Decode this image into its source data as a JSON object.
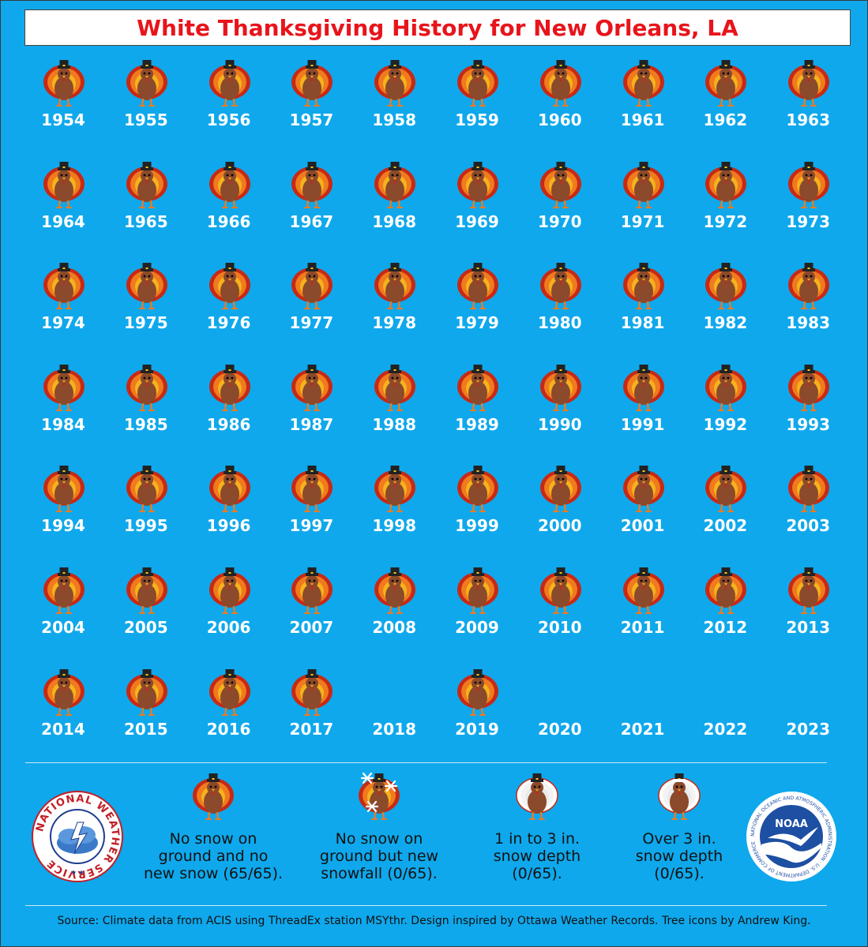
{
  "title": "White Thanksgiving History for New Orleans, LA",
  "years": [
    {
      "year": "1954",
      "category": "none"
    },
    {
      "year": "1955",
      "category": "none"
    },
    {
      "year": "1956",
      "category": "none"
    },
    {
      "year": "1957",
      "category": "none"
    },
    {
      "year": "1958",
      "category": "none"
    },
    {
      "year": "1959",
      "category": "none"
    },
    {
      "year": "1960",
      "category": "none"
    },
    {
      "year": "1961",
      "category": "none"
    },
    {
      "year": "1962",
      "category": "none"
    },
    {
      "year": "1963",
      "category": "none"
    },
    {
      "year": "1964",
      "category": "none"
    },
    {
      "year": "1965",
      "category": "none"
    },
    {
      "year": "1966",
      "category": "none"
    },
    {
      "year": "1967",
      "category": "none"
    },
    {
      "year": "1968",
      "category": "none"
    },
    {
      "year": "1969",
      "category": "none"
    },
    {
      "year": "1970",
      "category": "none"
    },
    {
      "year": "1971",
      "category": "none"
    },
    {
      "year": "1972",
      "category": "none"
    },
    {
      "year": "1973",
      "category": "none"
    },
    {
      "year": "1974",
      "category": "none"
    },
    {
      "year": "1975",
      "category": "none"
    },
    {
      "year": "1976",
      "category": "none"
    },
    {
      "year": "1977",
      "category": "none"
    },
    {
      "year": "1978",
      "category": "none"
    },
    {
      "year": "1979",
      "category": "none"
    },
    {
      "year": "1980",
      "category": "none"
    },
    {
      "year": "1981",
      "category": "none"
    },
    {
      "year": "1982",
      "category": "none"
    },
    {
      "year": "1983",
      "category": "none"
    },
    {
      "year": "1984",
      "category": "none"
    },
    {
      "year": "1985",
      "category": "none"
    },
    {
      "year": "1986",
      "category": "none"
    },
    {
      "year": "1987",
      "category": "none"
    },
    {
      "year": "1988",
      "category": "none"
    },
    {
      "year": "1989",
      "category": "none"
    },
    {
      "year": "1990",
      "category": "none"
    },
    {
      "year": "1991",
      "category": "none"
    },
    {
      "year": "1992",
      "category": "none"
    },
    {
      "year": "1993",
      "category": "none"
    },
    {
      "year": "1994",
      "category": "none"
    },
    {
      "year": "1995",
      "category": "none"
    },
    {
      "year": "1996",
      "category": "none"
    },
    {
      "year": "1997",
      "category": "none"
    },
    {
      "year": "1998",
      "category": "none"
    },
    {
      "year": "1999",
      "category": "none"
    },
    {
      "year": "2000",
      "category": "none"
    },
    {
      "year": "2001",
      "category": "none"
    },
    {
      "year": "2002",
      "category": "none"
    },
    {
      "year": "2003",
      "category": "none"
    },
    {
      "year": "2004",
      "category": "none"
    },
    {
      "year": "2005",
      "category": "none"
    },
    {
      "year": "2006",
      "category": "none"
    },
    {
      "year": "2007",
      "category": "none"
    },
    {
      "year": "2008",
      "category": "none"
    },
    {
      "year": "2009",
      "category": "none"
    },
    {
      "year": "2010",
      "category": "none"
    },
    {
      "year": "2011",
      "category": "none"
    },
    {
      "year": "2012",
      "category": "none"
    },
    {
      "year": "2013",
      "category": "none"
    },
    {
      "year": "2014",
      "category": "none"
    },
    {
      "year": "2015",
      "category": "none"
    },
    {
      "year": "2016",
      "category": "none"
    },
    {
      "year": "2017",
      "category": "none"
    },
    {
      "year": "2018",
      "category": "missing"
    },
    {
      "year": "2019",
      "category": "none"
    },
    {
      "year": "2020",
      "category": "missing"
    },
    {
      "year": "2021",
      "category": "missing"
    },
    {
      "year": "2022",
      "category": "missing"
    },
    {
      "year": "2023",
      "category": "missing"
    }
  ],
  "legend": [
    {
      "category": "none",
      "icon": "turkey-icon",
      "text": "No snow on\nground and no\nnew snow (65/65)."
    },
    {
      "category": "snowfall",
      "icon": "turkey-snowflake-icon",
      "text": "No snow on\nground but new\nsnowfall (0/65)."
    },
    {
      "category": "depth-1-3",
      "icon": "turkey-light-snow-icon",
      "text": "1 in to 3 in.\nsnow depth\n(0/65)."
    },
    {
      "category": "depth-over-3",
      "icon": "turkey-heavy-snow-icon",
      "text": "Over 3 in.\nsnow depth\n(0/65)."
    }
  ],
  "logos": {
    "nws": {
      "text": "NATIONAL WEATHER SERVICE"
    },
    "noaa": {
      "center_text": "NOAA",
      "ring_text": "NATIONAL OCEANIC AND ATMOSPHERIC ADMINISTRATION · U.S. DEPARTMENT OF COMMERCE"
    }
  },
  "source": "Source: Climate data from ACIS using ThreadEx station MSYthr. Design inspired by Ottawa Weather Records. Tree icons by Andrew King.",
  "colors": {
    "background": "#0fa8ec",
    "title_red": "#e8141b",
    "turkey_body": "#8b4a2b",
    "feather_red": "#c62a16",
    "feather_orange": "#f07a1e",
    "feather_yellow": "#f5b21c"
  }
}
